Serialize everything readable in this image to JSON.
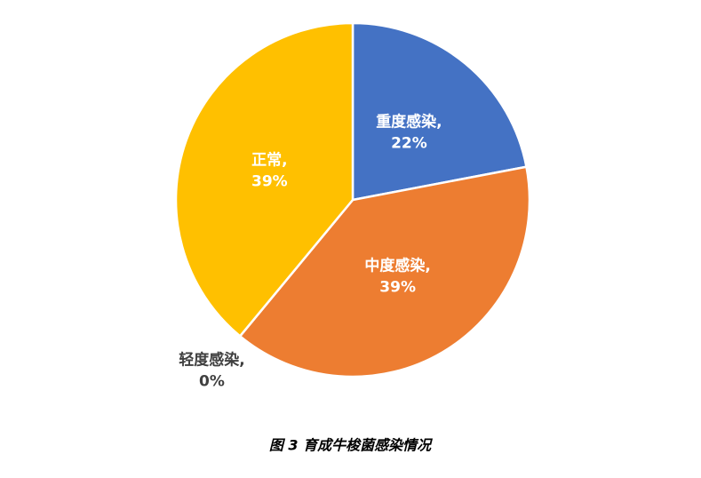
{
  "chart_data": {
    "type": "pie",
    "title": "图 3  育成牛梭菌感染情况",
    "categories": [
      "重度感染,",
      "中度感染,",
      "轻度感染,",
      "正常,"
    ],
    "values": [
      22,
      39,
      0,
      39
    ],
    "value_labels": [
      "22%",
      "39%",
      "0%",
      "39%"
    ],
    "colors": [
      "#4472c4",
      "#ed7d31",
      "#a5a5a5",
      "#ffc000"
    ]
  }
}
